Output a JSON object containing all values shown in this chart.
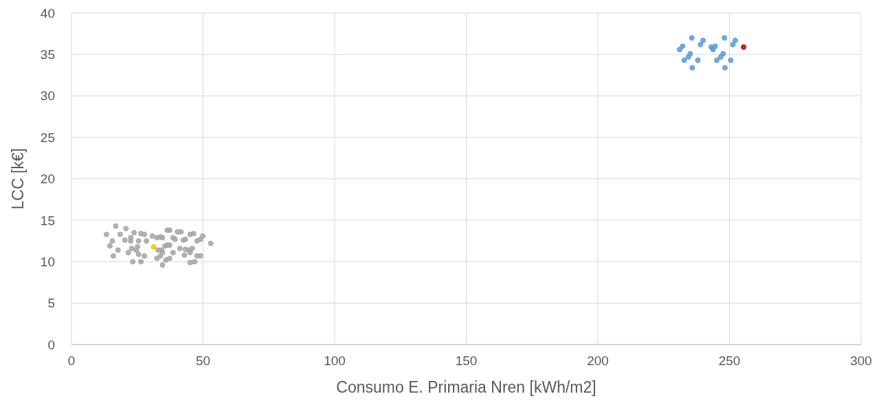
{
  "chart_data": {
    "type": "scatter",
    "xlabel": "Consumo E. Primaria Nren [kWh/m2]",
    "ylabel": "LCC [k€]",
    "xlim": [
      0,
      300
    ],
    "xticks": [
      0,
      50,
      100,
      150,
      200,
      250,
      300
    ],
    "ylim": [
      0,
      40
    ],
    "yticks": [
      0,
      5,
      10,
      15,
      20,
      25,
      30,
      35,
      40
    ],
    "grid": true,
    "marker": "circle",
    "series": [
      {
        "color": "#a5a5a5",
        "x": [
          16.8,
          13.3,
          20.7,
          18.5,
          23.8,
          26.4,
          27.7,
          30.7,
          36.4,
          37.3,
          40.3,
          41.6,
          45.1,
          46.4,
          49.9,
          52.9,
          15.5,
          14.6,
          20.3,
          22.5,
          22.5,
          25.5,
          28.5,
          32.5,
          33.8,
          34.6,
          38.6,
          39.4,
          42.5,
          43.3,
          47.7,
          49.0,
          17.7,
          15.9,
          21.6,
          22.9,
          24.6,
          25.1,
          25.5,
          27.7,
          32.9,
          34.2,
          35.5,
          36.4,
          37.3,
          34.6,
          33.8,
          38.6,
          41.2,
          43.3,
          44.6,
          45.9,
          42.9,
          45.1,
          47.7,
          49.0,
          23.3,
          26.4,
          32.5,
          35.9,
          37.3,
          34.6,
          45.1,
          46.8
        ],
        "values": [
          14.3,
          13.3,
          14.0,
          13.3,
          13.5,
          13.4,
          13.3,
          13.1,
          13.8,
          13.8,
          13.6,
          13.6,
          13.3,
          13.4,
          13.1,
          12.2,
          12.5,
          11.9,
          12.6,
          12.9,
          12.5,
          12.5,
          12.5,
          12.9,
          13.0,
          12.9,
          12.9,
          12.7,
          12.6,
          12.7,
          12.5,
          12.7,
          11.4,
          10.7,
          11.1,
          11.6,
          11.4,
          11.8,
          10.9,
          10.7,
          11.4,
          11.4,
          11.9,
          12.0,
          12.0,
          11.1,
          10.7,
          11.1,
          11.6,
          11.5,
          11.4,
          11.6,
          10.8,
          11.1,
          10.7,
          10.7,
          10.0,
          10.0,
          10.4,
          10.2,
          10.4,
          9.6,
          9.9,
          10.0
        ]
      },
      {
        "color": "#ffc000",
        "x": [
          31.2
        ],
        "values": [
          11.8
        ]
      },
      {
        "color": "#5b9bd5",
        "x": [
          235.7,
          240.0,
          239.0,
          232.2,
          231.1,
          243.1,
          244.6,
          243.8,
          248.1,
          252.2,
          251.3,
          235.1,
          234.4,
          232.8,
          238.0,
          247.6,
          246.7,
          245.2,
          250.5,
          235.9,
          248.3
        ],
        "values": [
          37.0,
          36.7,
          36.2,
          36.0,
          35.6,
          35.9,
          36.0,
          35.6,
          37.0,
          36.7,
          36.2,
          35.1,
          34.7,
          34.3,
          34.3,
          35.1,
          34.7,
          34.3,
          34.3,
          33.4,
          33.4
        ]
      },
      {
        "color": "#c00000",
        "x": [
          255.4
        ],
        "values": [
          35.9
        ]
      }
    ]
  }
}
